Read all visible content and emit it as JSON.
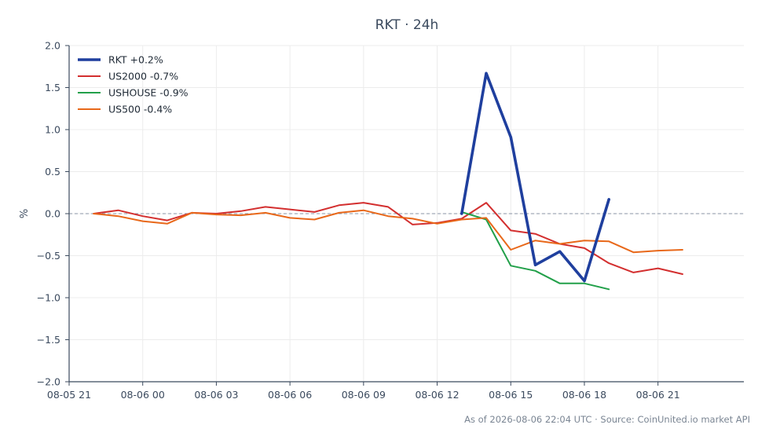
{
  "chart_data": {
    "type": "line",
    "title": "RKT · 24h",
    "xlabel": "",
    "ylabel": "%",
    "ylim": [
      -2.0,
      2.0
    ],
    "xlim": [
      "08-05 21:00",
      "08-07 00:30"
    ],
    "yticks": [
      2.0,
      1.5,
      1.0,
      0.5,
      0.0,
      -0.5,
      -1.0,
      -1.5,
      -2.0
    ],
    "ytick_labels": [
      "2.0",
      "1.5",
      "1.0",
      "0.5",
      "0.0",
      "−0.5",
      "−1.0",
      "−1.5",
      "−2.0"
    ],
    "xticks": [
      "08-05 21:00",
      "08-06 00:00",
      "08-06 03:00",
      "08-06 06:00",
      "08-06 09:00",
      "08-06 12:00",
      "08-06 15:00",
      "08-06 18:00",
      "08-06 21:00"
    ],
    "xtick_labels": [
      "08-05 21",
      "08-06 00",
      "08-06 03",
      "08-06 06",
      "08-06 09",
      "08-06 12",
      "08-06 15",
      "08-06 18",
      "08-06 21"
    ],
    "grid": true,
    "zero_line": true,
    "legend_position": "top-left",
    "series": [
      {
        "name": "RKT +0.2%",
        "color": "#1f3f9e",
        "x": [
          "08-06 13:00",
          "08-06 14:00",
          "08-06 15:00",
          "08-06 16:00",
          "08-06 17:00",
          "08-06 18:00",
          "08-06 19:00"
        ],
        "values": [
          0.0,
          1.67,
          0.91,
          -0.61,
          -0.45,
          -0.8,
          0.17
        ]
      },
      {
        "name": "US2000 -0.7%",
        "color": "#d32f2f",
        "x": [
          "08-05 22:00",
          "08-05 23:00",
          "08-06 00:00",
          "08-06 01:00",
          "08-06 02:00",
          "08-06 03:00",
          "08-06 04:00",
          "08-06 05:00",
          "08-06 06:00",
          "08-06 07:00",
          "08-06 08:00",
          "08-06 09:00",
          "08-06 10:00",
          "08-06 11:00",
          "08-06 12:00",
          "08-06 13:00",
          "08-06 14:00",
          "08-06 15:00",
          "08-06 16:00",
          "08-06 17:00",
          "08-06 18:00",
          "08-06 19:00",
          "08-06 20:00",
          "08-06 21:00",
          "08-06 22:00"
        ],
        "values": [
          0.0,
          0.04,
          -0.03,
          -0.08,
          0.01,
          0.0,
          0.03,
          0.08,
          0.05,
          0.02,
          0.1,
          0.13,
          0.08,
          -0.13,
          -0.11,
          -0.06,
          0.13,
          -0.2,
          -0.24,
          -0.36,
          -0.41,
          -0.59,
          -0.7,
          -0.65,
          -0.72
        ]
      },
      {
        "name": "USHOUSE -0.9%",
        "color": "#22a04a",
        "x": [
          "08-06 13:00",
          "08-06 14:00",
          "08-06 15:00",
          "08-06 16:00",
          "08-06 17:00",
          "08-06 18:00",
          "08-06 19:00"
        ],
        "values": [
          0.02,
          -0.07,
          -0.62,
          -0.68,
          -0.83,
          -0.83,
          -0.9
        ]
      },
      {
        "name": "US500 -0.4%",
        "color": "#e8681a",
        "x": [
          "08-05 22:00",
          "08-05 23:00",
          "08-06 00:00",
          "08-06 01:00",
          "08-06 02:00",
          "08-06 03:00",
          "08-06 04:00",
          "08-06 05:00",
          "08-06 06:00",
          "08-06 07:00",
          "08-06 08:00",
          "08-06 09:00",
          "08-06 10:00",
          "08-06 11:00",
          "08-06 12:00",
          "08-06 13:00",
          "08-06 14:00",
          "08-06 15:00",
          "08-06 16:00",
          "08-06 17:00",
          "08-06 18:00",
          "08-06 19:00",
          "08-06 20:00",
          "08-06 21:00",
          "08-06 22:00"
        ],
        "values": [
          0.0,
          -0.03,
          -0.09,
          -0.12,
          0.01,
          -0.01,
          -0.02,
          0.01,
          -0.05,
          -0.07,
          0.01,
          0.04,
          -0.03,
          -0.06,
          -0.12,
          -0.07,
          -0.05,
          -0.43,
          -0.32,
          -0.36,
          -0.32,
          -0.33,
          -0.46,
          -0.44,
          -0.43
        ]
      }
    ]
  },
  "footer": {
    "text": "As of 2026-08-06 22:04 UTC · Source: CoinUnited.io market API"
  }
}
